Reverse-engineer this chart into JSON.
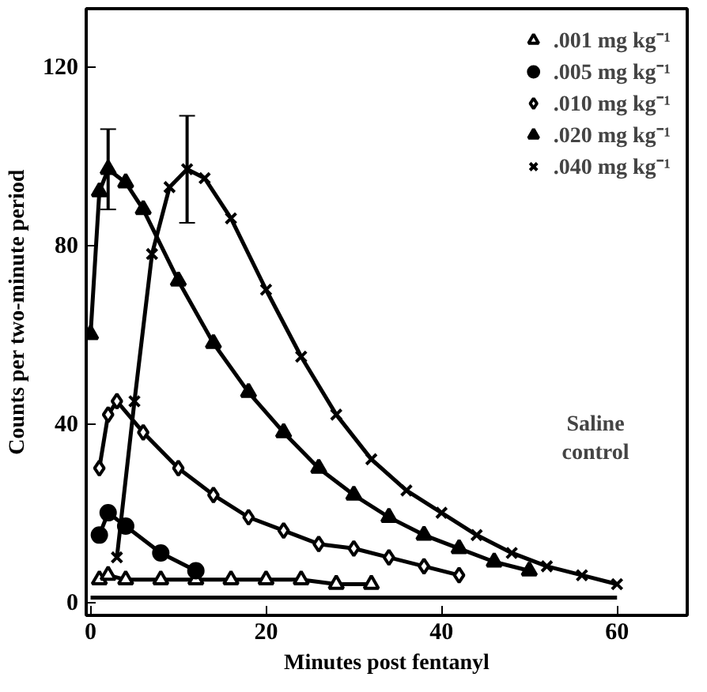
{
  "chart_data": {
    "type": "line",
    "xlabel": "Minutes post fentanyl",
    "ylabel": "Counts per two-minute period",
    "xlim": [
      -0.5,
      68
    ],
    "ylim": [
      -3,
      133
    ],
    "xticks": [
      0,
      20,
      40,
      60
    ],
    "yticks": [
      0,
      40,
      80,
      120
    ],
    "grid": false,
    "legend": "top right",
    "line_style": "solid",
    "series": [
      {
        "name": ".001 mg kg⁻¹",
        "marker": "triangle",
        "color": "#000000",
        "x": [
          1,
          2,
          4,
          8,
          12,
          16,
          20,
          24,
          28,
          32
        ],
        "values": [
          5,
          6,
          5,
          5,
          5,
          5,
          5,
          5,
          4,
          4
        ]
      },
      {
        "name": ".005 mg kg⁻¹",
        "marker": "circle",
        "color": "#000000",
        "x": [
          1,
          2,
          4,
          8,
          12
        ],
        "values": [
          15,
          20,
          17,
          11,
          7
        ]
      },
      {
        "name": ".010 mg kg⁻¹",
        "marker": "diamond",
        "color": "#000000",
        "x": [
          1,
          2,
          3,
          6,
          10,
          14,
          18,
          22,
          26,
          30,
          34,
          38,
          42
        ],
        "values": [
          30,
          42,
          45,
          38,
          30,
          24,
          19,
          16,
          13,
          12,
          10,
          8,
          6
        ]
      },
      {
        "name": ".020 mg kg⁻¹",
        "marker": "triangle_filled",
        "color": "#000000",
        "x": [
          0,
          1,
          2,
          4,
          6,
          10,
          14,
          18,
          22,
          26,
          30,
          34,
          38,
          42,
          46,
          50
        ],
        "values": [
          60,
          92,
          97,
          94,
          88,
          72,
          58,
          47,
          38,
          30,
          24,
          19,
          15,
          12,
          9,
          7
        ],
        "errors": [
          null,
          null,
          9,
          null,
          null,
          null,
          null,
          null,
          null,
          null,
          null,
          null,
          null,
          null,
          null,
          null
        ]
      },
      {
        "name": ".040 mg kg⁻¹",
        "marker": "x",
        "color": "#000000",
        "x": [
          3,
          5,
          7,
          9,
          11,
          13,
          16,
          20,
          24,
          28,
          32,
          36,
          40,
          44,
          48,
          52,
          56,
          60
        ],
        "values": [
          10,
          45,
          78,
          93,
          97,
          95,
          86,
          70,
          55,
          42,
          32,
          25,
          20,
          15,
          11,
          8,
          6,
          4
        ],
        "errors": [
          null,
          null,
          null,
          null,
          12,
          null,
          null,
          null,
          null,
          null,
          null,
          null,
          null,
          null,
          null,
          null,
          null,
          null
        ]
      },
      {
        "color": "#000000",
        "marker": "none",
        "x": [
          0,
          10,
          20,
          30,
          40,
          50,
          60
        ],
        "values": [
          1,
          1,
          1,
          1,
          1,
          1,
          1
        ]
      }
    ],
    "annotations": [
      "Saline control"
    ]
  }
}
